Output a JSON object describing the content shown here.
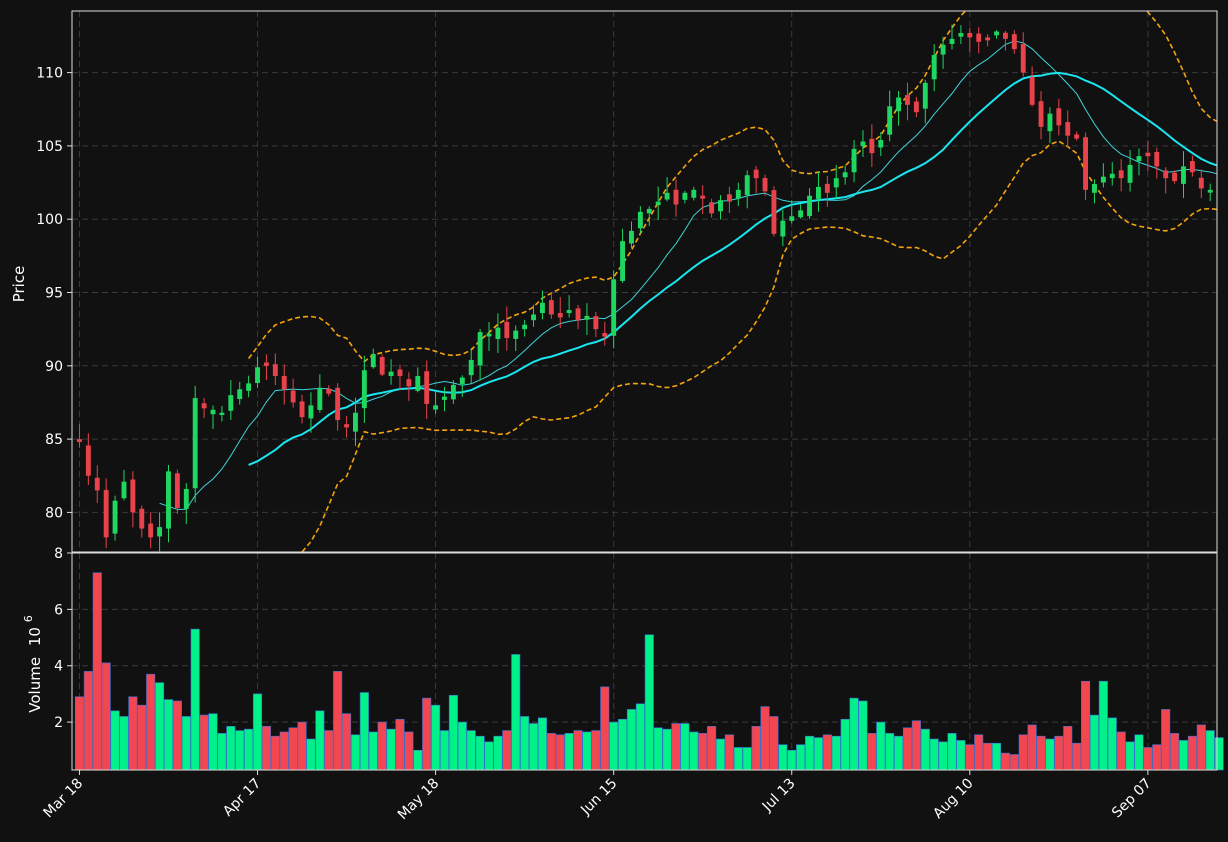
{
  "chart_data": {
    "type": "candlestick",
    "colors": {
      "background": "#111111",
      "up": "#1ed760",
      "down": "#e8434b",
      "volume_up": "#00f08a",
      "volume_down": "#f24750",
      "volume_edge": "#3b6fd8",
      "ma_short": "#3fd3d9",
      "ma_long": "#19e6f0",
      "bollinger": "#f5a40c",
      "grid": "#3a3a3a",
      "axis": "#dddddd"
    },
    "price_panel": {
      "ylabel": "Price",
      "yticks": [
        80,
        85,
        90,
        95,
        100,
        105,
        110
      ],
      "ylim": [
        77.3,
        114.2
      ]
    },
    "volume_panel": {
      "ylabel": "Volume",
      "exponent_label": "6",
      "yticks": [
        2,
        4,
        6,
        8
      ],
      "ylim": [
        0.3,
        8.0
      ]
    },
    "xticks": [
      {
        "index": 0,
        "label": "Mar 18"
      },
      {
        "index": 20,
        "label": "Apr 17"
      },
      {
        "index": 40,
        "label": "May 18"
      },
      {
        "index": 60,
        "label": "Jun 15"
      },
      {
        "index": 80,
        "label": "Jul 13"
      },
      {
        "index": 100,
        "label": "Aug 10"
      },
      {
        "index": 120,
        "label": "Sep 07"
      }
    ],
    "x_count": 129,
    "ohlc_anchors": [
      [
        0,
        84.8
      ],
      [
        1,
        82.5
      ],
      [
        2,
        81.5
      ],
      [
        3,
        78.3
      ],
      [
        4,
        80.8
      ],
      [
        5,
        82.1
      ],
      [
        6,
        80.0
      ],
      [
        7,
        78.9
      ],
      [
        8,
        78.3
      ],
      [
        9,
        79.0
      ],
      [
        10,
        82.8
      ],
      [
        11,
        80.3
      ],
      [
        12,
        81.6
      ],
      [
        13,
        87.8
      ],
      [
        14,
        87.1
      ],
      [
        15,
        87.0
      ],
      [
        16,
        86.8
      ],
      [
        17,
        88.0
      ],
      [
        18,
        88.4
      ],
      [
        19,
        88.8
      ],
      [
        20,
        89.9
      ],
      [
        21,
        90.0
      ],
      [
        22,
        89.3
      ],
      [
        23,
        88.4
      ],
      [
        24,
        87.5
      ],
      [
        25,
        86.5
      ],
      [
        26,
        87.3
      ],
      [
        27,
        88.5
      ],
      [
        28,
        88.1
      ],
      [
        29,
        86.3
      ],
      [
        30,
        85.8
      ],
      [
        31,
        86.8
      ],
      [
        32,
        89.7
      ],
      [
        33,
        90.8
      ],
      [
        34,
        89.4
      ],
      [
        35,
        89.6
      ],
      [
        36,
        89.3
      ],
      [
        37,
        88.6
      ],
      [
        38,
        89.3
      ],
      [
        39,
        87.4
      ],
      [
        40,
        87.3
      ],
      [
        41,
        87.9
      ],
      [
        42,
        88.7
      ],
      [
        43,
        89.2
      ],
      [
        44,
        90.4
      ],
      [
        45,
        92.3
      ],
      [
        46,
        92.2
      ],
      [
        47,
        92.6
      ],
      [
        48,
        91.9
      ],
      [
        49,
        92.4
      ],
      [
        50,
        92.8
      ],
      [
        51,
        93.5
      ],
      [
        52,
        94.3
      ],
      [
        53,
        93.5
      ],
      [
        54,
        93.3
      ],
      [
        55,
        93.8
      ],
      [
        56,
        93.1
      ],
      [
        57,
        93.4
      ],
      [
        58,
        92.5
      ],
      [
        59,
        92.0
      ],
      [
        60,
        95.9
      ],
      [
        61,
        98.5
      ],
      [
        62,
        99.2
      ],
      [
        63,
        100.5
      ],
      [
        64,
        100.7
      ],
      [
        65,
        101.2
      ],
      [
        66,
        101.8
      ],
      [
        67,
        101.0
      ],
      [
        68,
        101.8
      ],
      [
        69,
        102.0
      ],
      [
        70,
        101.4
      ],
      [
        71,
        100.4
      ],
      [
        72,
        101.3
      ],
      [
        73,
        101.2
      ],
      [
        74,
        102.0
      ],
      [
        75,
        103.0
      ],
      [
        76,
        102.8
      ],
      [
        77,
        101.9
      ],
      [
        78,
        99.0
      ],
      [
        79,
        99.9
      ],
      [
        80,
        100.2
      ],
      [
        81,
        100.6
      ],
      [
        82,
        101.6
      ],
      [
        83,
        102.2
      ],
      [
        84,
        101.8
      ],
      [
        85,
        102.8
      ],
      [
        86,
        103.2
      ],
      [
        87,
        104.8
      ],
      [
        88,
        105.3
      ],
      [
        89,
        104.5
      ],
      [
        90,
        105.4
      ],
      [
        91,
        107.7
      ],
      [
        92,
        108.3
      ],
      [
        93,
        107.8
      ],
      [
        94,
        107.3
      ],
      [
        95,
        109.3
      ],
      [
        96,
        111.2
      ],
      [
        97,
        111.9
      ],
      [
        98,
        112.3
      ],
      [
        99,
        112.7
      ],
      [
        100,
        112.4
      ],
      [
        101,
        112.1
      ],
      [
        102,
        112.2
      ],
      [
        103,
        112.8
      ],
      [
        104,
        112.3
      ],
      [
        105,
        111.6
      ],
      [
        106,
        110.0
      ],
      [
        107,
        107.8
      ],
      [
        108,
        106.3
      ],
      [
        109,
        107.2
      ],
      [
        110,
        106.4
      ],
      [
        111,
        105.7
      ],
      [
        112,
        105.5
      ],
      [
        113,
        102.0
      ],
      [
        114,
        102.4
      ],
      [
        115,
        102.9
      ],
      [
        116,
        103.1
      ],
      [
        117,
        102.8
      ],
      [
        118,
        103.7
      ],
      [
        119,
        104.3
      ],
      [
        120,
        104.3
      ],
      [
        121,
        103.6
      ],
      [
        122,
        102.8
      ],
      [
        123,
        102.6
      ],
      [
        124,
        103.6
      ],
      [
        125,
        103.2
      ],
      [
        126,
        102.1
      ],
      [
        127,
        102.0
      ],
      [
        128,
        102.1
      ]
    ],
    "volume": [
      2.9,
      3.8,
      7.3,
      4.1,
      2.4,
      2.2,
      2.9,
      2.6,
      3.7,
      3.4,
      2.8,
      2.75,
      2.2,
      5.3,
      2.25,
      2.3,
      1.6,
      1.85,
      1.7,
      1.75,
      3.0,
      1.85,
      1.5,
      1.65,
      1.8,
      2.0,
      1.4,
      2.4,
      1.7,
      3.8,
      2.3,
      1.55,
      3.05,
      1.65,
      2.0,
      1.75,
      2.1,
      1.65,
      1.0,
      2.85,
      2.6,
      1.7,
      2.95,
      2.0,
      1.7,
      1.5,
      1.3,
      1.5,
      1.7,
      4.4,
      2.2,
      1.95,
      2.15,
      1.6,
      1.55,
      1.6,
      1.7,
      1.65,
      1.7,
      3.25,
      2.0,
      2.1,
      2.45,
      2.65,
      5.1,
      1.8,
      1.75,
      1.95,
      1.95,
      1.65,
      1.6,
      1.85,
      1.4,
      1.55,
      1.1,
      1.1,
      1.85,
      2.55,
      2.2,
      1.2,
      1.0,
      1.2,
      1.5,
      1.45,
      1.55,
      1.5,
      2.1,
      2.85,
      2.75,
      1.6,
      2.0,
      1.6,
      1.5,
      1.8,
      2.05,
      1.75,
      1.4,
      1.3,
      1.6,
      1.35,
      1.2,
      1.55,
      1.25,
      1.25,
      0.9,
      0.85,
      1.55,
      1.9,
      1.5,
      1.4,
      1.5,
      1.85,
      1.25,
      3.45,
      2.25,
      3.45,
      2.15,
      1.65,
      1.3,
      1.55,
      1.1,
      1.2,
      2.45,
      1.6,
      1.35,
      1.5,
      1.9,
      1.7,
      1.45
    ]
  }
}
